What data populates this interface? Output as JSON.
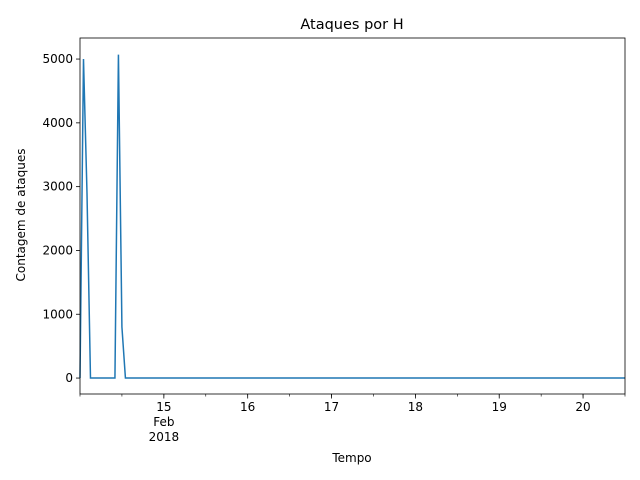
{
  "chart_data": {
    "type": "line",
    "title": "Ataques por H",
    "xlabel": "Tempo",
    "ylabel": "Contagem de ataques",
    "x_unit": "date",
    "xlim": [
      "2018-02-14T00:00",
      "2018-02-20T12:00"
    ],
    "ylim": [
      -250,
      5330
    ],
    "x_ticks": [
      {
        "x": "2018-02-15T00:00",
        "label": "15",
        "sublabel": "Feb",
        "sublabel2": "2018"
      },
      {
        "x": "2018-02-16T00:00",
        "label": "16"
      },
      {
        "x": "2018-02-17T00:00",
        "label": "17"
      },
      {
        "x": "2018-02-18T00:00",
        "label": "18"
      },
      {
        "x": "2018-02-19T00:00",
        "label": "19"
      },
      {
        "x": "2018-02-20T00:00",
        "label": "20"
      }
    ],
    "y_ticks": [
      0,
      1000,
      2000,
      3000,
      4000,
      5000
    ],
    "series": [
      {
        "color": "#1f77b4",
        "points": [
          {
            "x": "2018-02-14T00:00",
            "y": 0
          },
          {
            "x": "2018-02-14T01:00",
            "y": 5000
          },
          {
            "x": "2018-02-14T02:00",
            "y": 2900
          },
          {
            "x": "2018-02-14T03:00",
            "y": 0
          },
          {
            "x": "2018-02-14T04:00",
            "y": 0
          },
          {
            "x": "2018-02-14T05:00",
            "y": 0
          },
          {
            "x": "2018-02-14T06:00",
            "y": 0
          },
          {
            "x": "2018-02-14T07:00",
            "y": 0
          },
          {
            "x": "2018-02-14T08:00",
            "y": 0
          },
          {
            "x": "2018-02-14T09:00",
            "y": 0
          },
          {
            "x": "2018-02-14T10:00",
            "y": 0
          },
          {
            "x": "2018-02-14T11:00",
            "y": 5070
          },
          {
            "x": "2018-02-14T12:00",
            "y": 800
          },
          {
            "x": "2018-02-14T13:00",
            "y": 0
          },
          {
            "x": "2018-02-15T00:00",
            "y": 0
          },
          {
            "x": "2018-02-16T00:00",
            "y": 0
          },
          {
            "x": "2018-02-17T00:00",
            "y": 0
          },
          {
            "x": "2018-02-18T00:00",
            "y": 0
          },
          {
            "x": "2018-02-19T00:00",
            "y": 0
          },
          {
            "x": "2018-02-20T00:00",
            "y": 0
          },
          {
            "x": "2018-02-20T12:00",
            "y": 0
          }
        ]
      }
    ]
  }
}
